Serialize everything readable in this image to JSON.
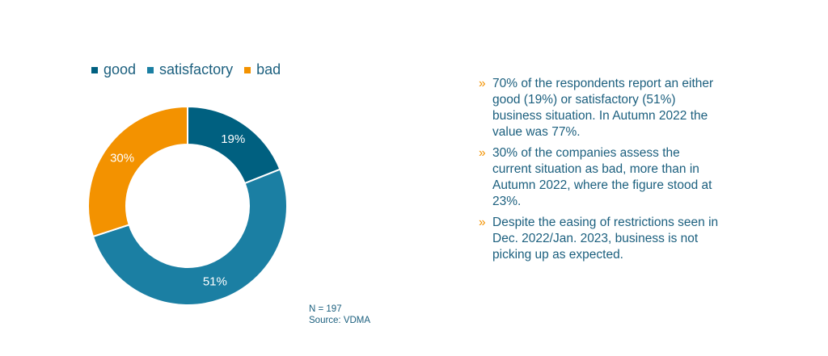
{
  "colors": {
    "good": "#006080",
    "satisfactory": "#1b7fa3",
    "bad": "#f39200",
    "text": "#1b5f7e",
    "bullet_marker": "#f39200"
  },
  "chart_data": {
    "type": "pie",
    "subtype": "donut",
    "categories": [
      "good",
      "satisfactory",
      "bad"
    ],
    "values": [
      19,
      51,
      30
    ],
    "labels": [
      "19%",
      "51%",
      "30%"
    ],
    "unit": "%",
    "legend_position": "top-left"
  },
  "note": {
    "n": "N = 197",
    "source": "Source: VDMA"
  },
  "bullets": {
    "marker": "»",
    "items": [
      "70% of the respondents report an either good (19%) or satisfactory (51%) business situation. In Autumn 2022 the value was 77%.",
      "30% of the companies assess the current situation as bad, more than in Autumn 2022, where the figure stood at 23%.",
      "Despite the easing of restrictions seen in Dec. 2022/Jan. 2023, business is not picking up as expected."
    ]
  }
}
